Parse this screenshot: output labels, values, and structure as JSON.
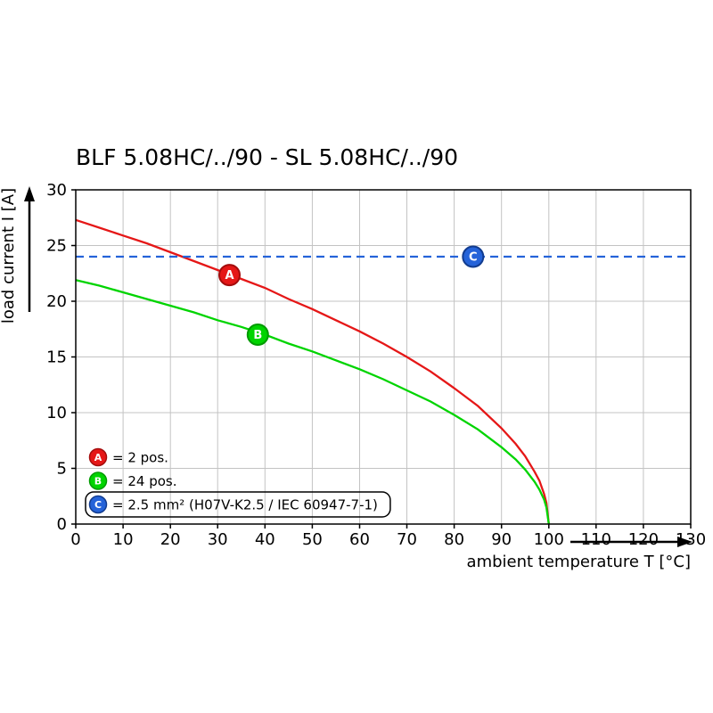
{
  "chart": {
    "title": "BLF 5.08HC/../90 - SL 5.08HC/../90"
  },
  "chart_data": {
    "type": "line",
    "title": "BLF 5.08HC/../90 - SL 5.08HC/../90",
    "xlabel": "ambient temperature T [°C]",
    "ylabel": "load current I [A]",
    "xlim": [
      0,
      130
    ],
    "ylim": [
      0,
      30
    ],
    "xticks": [
      0,
      10,
      20,
      30,
      40,
      50,
      60,
      70,
      80,
      90,
      100,
      110,
      120,
      130
    ],
    "yticks": [
      0,
      5,
      10,
      15,
      20,
      25,
      30
    ],
    "grid": true,
    "background": "#ffffff",
    "grid_color": "#c3c3c3",
    "series": [
      {
        "letter": "A",
        "name": "2 pos.",
        "color": "#e51717",
        "style": "solid",
        "points": [
          [
            0,
            27.3
          ],
          [
            5,
            26.6
          ],
          [
            10,
            25.9
          ],
          [
            15,
            25.2
          ],
          [
            20,
            24.4
          ],
          [
            25,
            23.6
          ],
          [
            30,
            22.8
          ],
          [
            35,
            22.0
          ],
          [
            40,
            21.2
          ],
          [
            45,
            20.2
          ],
          [
            50,
            19.3
          ],
          [
            55,
            18.3
          ],
          [
            60,
            17.3
          ],
          [
            65,
            16.2
          ],
          [
            70,
            15.0
          ],
          [
            75,
            13.7
          ],
          [
            80,
            12.2
          ],
          [
            85,
            10.6
          ],
          [
            90,
            8.6
          ],
          [
            93,
            7.2
          ],
          [
            95,
            6.1
          ],
          [
            97,
            4.7
          ],
          [
            98,
            3.9
          ],
          [
            99,
            2.7
          ],
          [
            99.5,
            1.9
          ],
          [
            100,
            0
          ]
        ]
      },
      {
        "letter": "B",
        "name": "24 pos.",
        "color": "#00d400",
        "style": "solid",
        "points": [
          [
            0,
            21.9
          ],
          [
            5,
            21.4
          ],
          [
            10,
            20.8
          ],
          [
            15,
            20.2
          ],
          [
            20,
            19.6
          ],
          [
            25,
            19.0
          ],
          [
            30,
            18.3
          ],
          [
            35,
            17.7
          ],
          [
            40,
            17.0
          ],
          [
            45,
            16.2
          ],
          [
            50,
            15.5
          ],
          [
            55,
            14.7
          ],
          [
            60,
            13.9
          ],
          [
            65,
            13.0
          ],
          [
            70,
            12.0
          ],
          [
            75,
            11.0
          ],
          [
            80,
            9.8
          ],
          [
            85,
            8.5
          ],
          [
            90,
            6.9
          ],
          [
            93,
            5.8
          ],
          [
            95,
            4.9
          ],
          [
            97,
            3.8
          ],
          [
            98,
            3.1
          ],
          [
            99,
            2.2
          ],
          [
            99.5,
            1.5
          ],
          [
            100,
            0
          ]
        ]
      },
      {
        "letter": "C",
        "name": "2.5 mm² (H07V-K2.5 / IEC 60947-7-1)",
        "color": "#2563d9",
        "style": "dashed",
        "points": [
          [
            0,
            24
          ],
          [
            130,
            24
          ]
        ]
      }
    ],
    "markers": [
      {
        "letter": "A",
        "x": 32.5,
        "y": 22.35,
        "fill": "#e51717",
        "stroke": "#a30c0c"
      },
      {
        "letter": "B",
        "x": 38.5,
        "y": 17.0,
        "fill": "#00d400",
        "stroke": "#009b00"
      },
      {
        "letter": "C",
        "x": 84,
        "y": 24,
        "fill": "#2563d9",
        "stroke": "#123c8f"
      }
    ],
    "legend": {
      "position": "inside-bottom-left",
      "entries": [
        {
          "letter": "A",
          "fill": "#e51717",
          "stroke": "#a30c0c",
          "label": "= 2 pos.",
          "boxed": false
        },
        {
          "letter": "B",
          "fill": "#00d400",
          "stroke": "#009b00",
          "label": "= 24 pos.",
          "boxed": false
        },
        {
          "letter": "C",
          "fill": "#2563d9",
          "stroke": "#123c8f",
          "label": "= 2.5 mm² (H07V-K2.5 / IEC 60947-7-1)",
          "boxed": true
        }
      ]
    }
  }
}
